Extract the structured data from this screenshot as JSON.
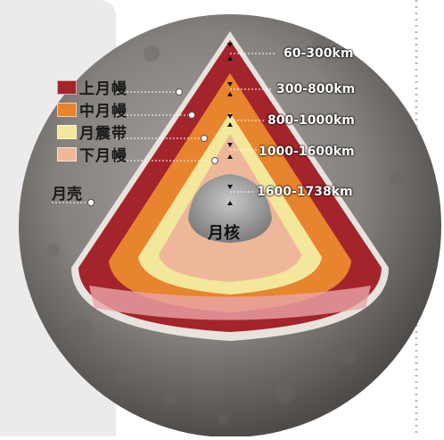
{
  "legend": [
    {
      "label": "上月幔",
      "color": "#a4242c"
    },
    {
      "label": "中月幔",
      "color": "#e8832e"
    },
    {
      "label": "月震带",
      "color": "#f2e79a"
    },
    {
      "label": "下月幔",
      "color": "#efb79a"
    }
  ],
  "crust_label": "月壳",
  "core_label": "月核",
  "depths": [
    "60-300km",
    "300-800km",
    "800-1000km",
    "1000-1600km",
    "1600-1738km"
  ],
  "colors": {
    "upper_mantle": "#a4242c",
    "middle_mantle": "#e8832e",
    "seismic_zone": "#f2e79a",
    "lower_mantle": "#efb79a",
    "core": "#9a9a9a",
    "crust": "#d9d2cc",
    "moon_surface": "#8a8783"
  }
}
